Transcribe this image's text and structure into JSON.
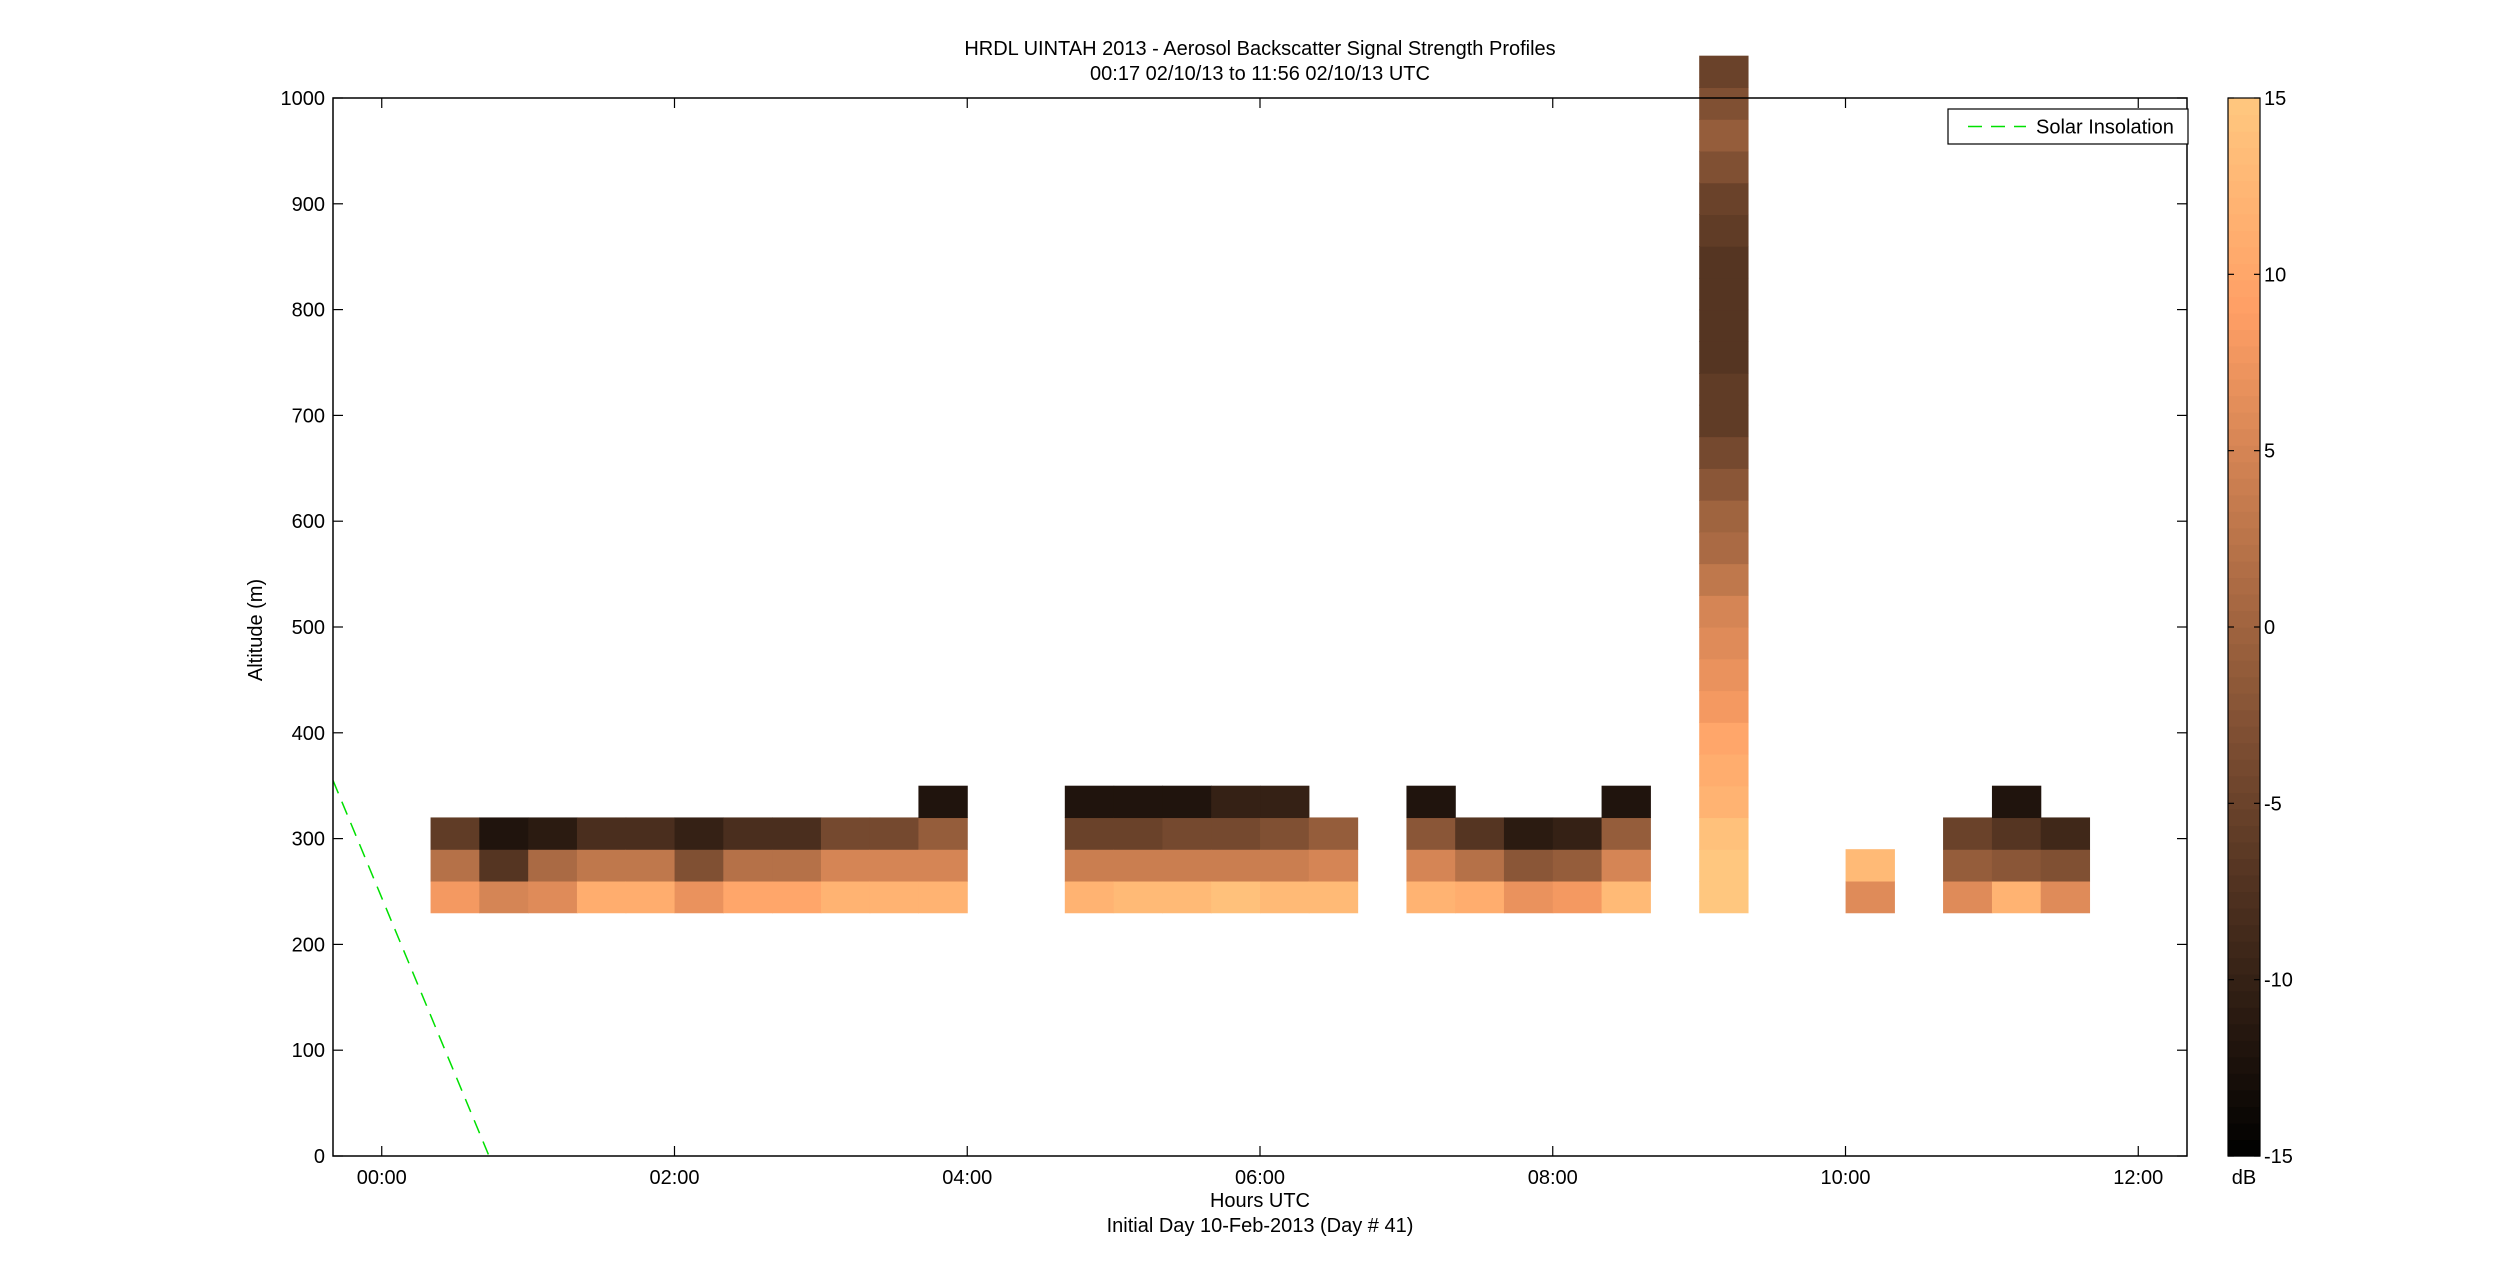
{
  "chart_data": {
    "type": "heatmap",
    "title": "HRDL UINTAH 2013 - Aerosol Backscatter Signal Strength Profiles",
    "subtitle": "00:17 02/10/13 to 11:56 02/10/13  UTC",
    "xlabel": "Hours UTC",
    "xlabel2": "Initial Day 10-Feb-2013 (Day # 41)",
    "ylabel": "Altitude (m)",
    "xlim": [
      -0.333,
      12.333
    ],
    "ylim": [
      0,
      1000
    ],
    "x_ticks": [
      0,
      2,
      4,
      6,
      8,
      10,
      12
    ],
    "x_tick_labels": [
      "00:00",
      "02:00",
      "04:00",
      "06:00",
      "08:00",
      "10:00",
      "12:00"
    ],
    "y_ticks": [
      0,
      100,
      200,
      300,
      400,
      500,
      600,
      700,
      800,
      900,
      1000
    ],
    "y_tick_labels": [
      "0",
      "100",
      "200",
      "300",
      "400",
      "500",
      "600",
      "700",
      "800",
      "900",
      "1000"
    ],
    "colorbar": {
      "label": "dB",
      "range": [
        -15,
        15
      ],
      "ticks": [
        -15,
        -10,
        -5,
        0,
        5,
        10,
        15
      ],
      "tick_labels": [
        "-15",
        "-10",
        "-5",
        "0",
        "5",
        "10",
        "15"
      ],
      "colormap": "copper"
    },
    "legend": {
      "position": "top-right",
      "entries": [
        {
          "label": "Solar Insolation",
          "color": "#00e000",
          "style": "dashed"
        }
      ]
    },
    "cell_width_hours": 0.333,
    "cell_height_m": 30,
    "columns": [
      {
        "t": 0.5,
        "base": 230,
        "values": [
          8,
          2,
          -6
        ]
      },
      {
        "t": 0.833,
        "base": 230,
        "values": [
          5,
          -7,
          -12
        ]
      },
      {
        "t": 1.167,
        "base": 230,
        "values": [
          6,
          1,
          -11
        ]
      },
      {
        "t": 1.5,
        "base": 230,
        "values": [
          11,
          3,
          -8
        ]
      },
      {
        "t": 1.833,
        "base": 230,
        "values": [
          11,
          3,
          -8
        ]
      },
      {
        "t": 2.167,
        "base": 230,
        "values": [
          7,
          -3,
          -10
        ]
      },
      {
        "t": 2.5,
        "base": 230,
        "values": [
          10,
          2,
          -8
        ]
      },
      {
        "t": 2.833,
        "base": 230,
        "values": [
          10,
          2,
          -8
        ]
      },
      {
        "t": 3.167,
        "base": 230,
        "values": [
          12,
          5,
          -4
        ]
      },
      {
        "t": 3.5,
        "base": 230,
        "values": [
          12,
          5,
          -4
        ]
      },
      {
        "t": 3.833,
        "base": 230,
        "values": [
          12,
          5,
          -1,
          -12
        ]
      },
      {
        "t": 4.833,
        "base": 230,
        "values": [
          12,
          4,
          -5,
          -12
        ]
      },
      {
        "t": 5.167,
        "base": 230,
        "values": [
          13,
          4,
          -5,
          -12
        ]
      },
      {
        "t": 5.5,
        "base": 230,
        "values": [
          13,
          4,
          -4,
          -12
        ]
      },
      {
        "t": 5.833,
        "base": 230,
        "values": [
          14,
          4,
          -4,
          -10
        ]
      },
      {
        "t": 6.167,
        "base": 230,
        "values": [
          13,
          4,
          -3,
          -10
        ]
      },
      {
        "t": 6.5,
        "base": 230,
        "values": [
          13,
          5,
          -1
        ]
      },
      {
        "t": 7.167,
        "base": 230,
        "values": [
          12,
          5,
          -2,
          -12
        ]
      },
      {
        "t": 7.5,
        "base": 230,
        "values": [
          11,
          2,
          -7
        ]
      },
      {
        "t": 7.833,
        "base": 230,
        "values": [
          7,
          -2,
          -11
        ]
      },
      {
        "t": 8.167,
        "base": 230,
        "values": [
          8,
          -1,
          -10
        ]
      },
      {
        "t": 8.5,
        "base": 230,
        "values": [
          13,
          5,
          -1,
          -12
        ]
      },
      {
        "t": 9.167,
        "base": 230,
        "values": [
          15,
          15,
          14,
          12,
          11,
          10,
          8,
          7,
          6,
          5,
          3,
          1,
          0,
          -2,
          -4,
          -6,
          -6,
          -7,
          -7,
          -7,
          -7,
          -6,
          -5,
          -3,
          -1,
          -3,
          -5
        ]
      },
      {
        "t": 10.167,
        "base": 230,
        "values": [
          6,
          13
        ]
      },
      {
        "t": 10.833,
        "base": 230,
        "values": [
          6,
          -1,
          -5
        ]
      },
      {
        "t": 11.167,
        "base": 230,
        "values": [
          12,
          -2,
          -7,
          -12
        ]
      },
      {
        "t": 11.5,
        "base": 230,
        "values": [
          6,
          -3,
          -9
        ]
      }
    ],
    "series": [
      {
        "name": "Solar Insolation",
        "x": [
          -0.333,
          0.733
        ],
        "y": [
          355,
          0
        ]
      }
    ]
  }
}
